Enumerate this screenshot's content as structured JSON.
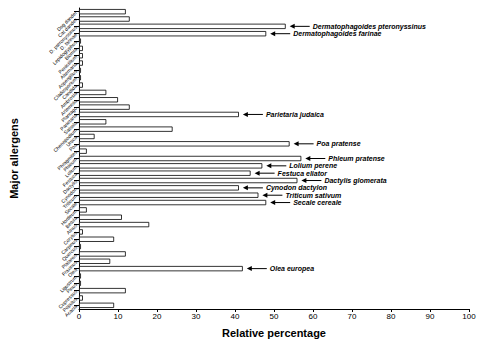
{
  "chart_data": {
    "type": "bar",
    "orientation": "horizontal",
    "xlabel": "Relative percentage",
    "ylabel": "Major allergens",
    "categories": [
      "Dog dander",
      "Cat dander",
      "D. pteronyssinus",
      "D. farinae",
      "Lepidoglyphus",
      "Blomia",
      "Penicillium",
      "Alternaria",
      "Aspergillus",
      "Cladosporium",
      "Candida",
      "Ambrosia",
      "Artemisia",
      "Plantago",
      "Parietaria",
      "Salsola",
      "Chenopodium",
      "Urtica",
      "Poa",
      "Phragmites",
      "Phleum",
      "Lolium",
      "Festuca",
      "Dactylis",
      "Cynodon",
      "Triticum",
      "Secale",
      "Hordeum",
      "Betula",
      "Alnus",
      "Corylus",
      "Carpinus",
      "Quercus",
      "Platanus",
      "Fraxinus",
      "Olea",
      "Ligustrum",
      "Pinus",
      "Cupressus",
      "Populus",
      "Acacia"
    ],
    "values": [
      12,
      13,
      53,
      48,
      0.5,
      1,
      1,
      1,
      0.5,
      0.5,
      1,
      7,
      10,
      13,
      41,
      7,
      24,
      4,
      54,
      2,
      57,
      47,
      44,
      56,
      41,
      46,
      48,
      2,
      11,
      18,
      1,
      9,
      0.5,
      12,
      8,
      42,
      0.5,
      0.5,
      12,
      1,
      9
    ],
    "color": "#ffffff",
    "xlim": [
      0,
      100
    ],
    "xticks": [
      0,
      10,
      20,
      30,
      40,
      50,
      60,
      70,
      80,
      90,
      100
    ],
    "grid": false,
    "annotations": [
      {
        "category": "D. pteronyssinus",
        "text": "Dermatophagoides pteronyssinus"
      },
      {
        "category": "D. farinae",
        "text": "Dermatophagoides farinae"
      },
      {
        "category": "Parietaria",
        "text": "Parietaria judaica"
      },
      {
        "category": "Poa",
        "text": "Poa pratense"
      },
      {
        "category": "Phleum",
        "text": "Phleum pratense"
      },
      {
        "category": "Lolium",
        "text": "Lolium perene"
      },
      {
        "category": "Festuca",
        "text": "Festuca eliator"
      },
      {
        "category": "Dactylis",
        "text": "Dactylis glomerata"
      },
      {
        "category": "Cynodon",
        "text": "Cynodon dactylon"
      },
      {
        "category": "Triticum",
        "text": "Triticum sativum"
      },
      {
        "category": "Secale",
        "text": "Secale cereale"
      },
      {
        "category": "Olea",
        "text": "Olea europea"
      }
    ]
  }
}
